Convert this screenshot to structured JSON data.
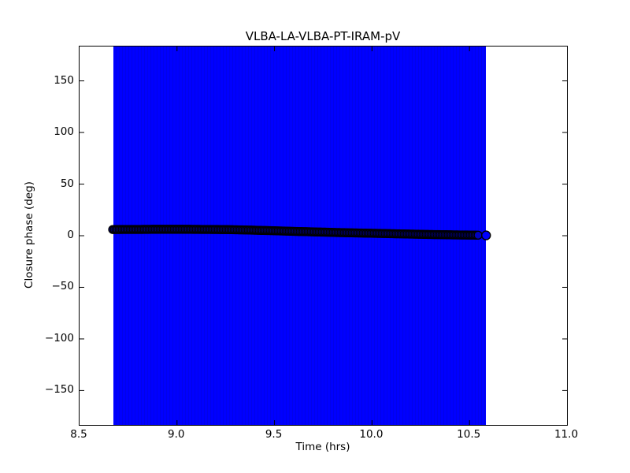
{
  "figure": {
    "title": "VLBA-LA-VLBA-PT-IRAM-pV",
    "xlabel": "Time (hrs)",
    "ylabel": "Closure phase (deg)"
  },
  "chart_data": {
    "type": "scatter",
    "title": "VLBA-LA-VLBA-PT-IRAM-pV",
    "xlabel": "Time (hrs)",
    "ylabel": "Closure phase (deg)",
    "xlim": [
      8.5,
      11.0
    ],
    "ylim": [
      -183.3,
      183.3
    ],
    "grid": false,
    "legend": "none",
    "x_ticks": [
      {
        "value": 8.5,
        "label": "8.5"
      },
      {
        "value": 9.0,
        "label": "9.0"
      },
      {
        "value": 9.5,
        "label": "9.5"
      },
      {
        "value": 10.0,
        "label": "10.0"
      },
      {
        "value": 10.5,
        "label": "10.5"
      },
      {
        "value": 11.0,
        "label": "11.0"
      }
    ],
    "y_ticks": [
      {
        "value": 150,
        "label": "150"
      },
      {
        "value": 100,
        "label": "100"
      },
      {
        "value": 50,
        "label": "50"
      },
      {
        "value": 0,
        "label": "0"
      },
      {
        "value": -50,
        "label": "−50"
      },
      {
        "value": -100,
        "label": "−100"
      },
      {
        "value": -150,
        "label": "−150"
      }
    ],
    "error_band": {
      "x_start": 8.673,
      "x_end": 10.585,
      "color": "#0000ff",
      "note": "dense vertical error bars spanning the full y-range (clipped at axes limits)"
    },
    "series": [
      {
        "name": "closure-phase-points",
        "marker": "circle",
        "marker_face_color": "#0000ff",
        "marker_edge_color": "#000000",
        "x": [
          8.67,
          8.72,
          8.77,
          8.82,
          8.87,
          8.92,
          8.97,
          9.02,
          9.07,
          9.12,
          9.17,
          9.22,
          9.27,
          9.32,
          9.37,
          9.42,
          9.47,
          9.52,
          9.57,
          9.62,
          9.67,
          9.72,
          9.77,
          9.82,
          9.87,
          9.92,
          9.97,
          10.02,
          10.07,
          10.12,
          10.17,
          10.22,
          10.27,
          10.32,
          10.37,
          10.42,
          10.47,
          10.52,
          10.55
        ],
        "y": [
          6.0,
          6.1,
          6.1,
          6.1,
          6.2,
          6.2,
          6.2,
          6.2,
          6.2,
          6.1,
          6.1,
          6.0,
          5.9,
          5.7,
          5.5,
          5.2,
          5.0,
          4.7,
          4.4,
          4.1,
          3.9,
          3.6,
          3.4,
          3.1,
          2.9,
          2.7,
          2.5,
          2.3,
          2.1,
          1.9,
          1.7,
          1.5,
          1.3,
          1.1,
          1.0,
          0.8,
          0.7,
          0.6,
          0.5
        ]
      },
      {
        "name": "closure-phase-last-point",
        "marker": "circle",
        "marker_face_color": "#0000ff",
        "marker_edge_color": "#000000",
        "x": [
          10.585
        ],
        "y": [
          0.3
        ]
      }
    ]
  }
}
